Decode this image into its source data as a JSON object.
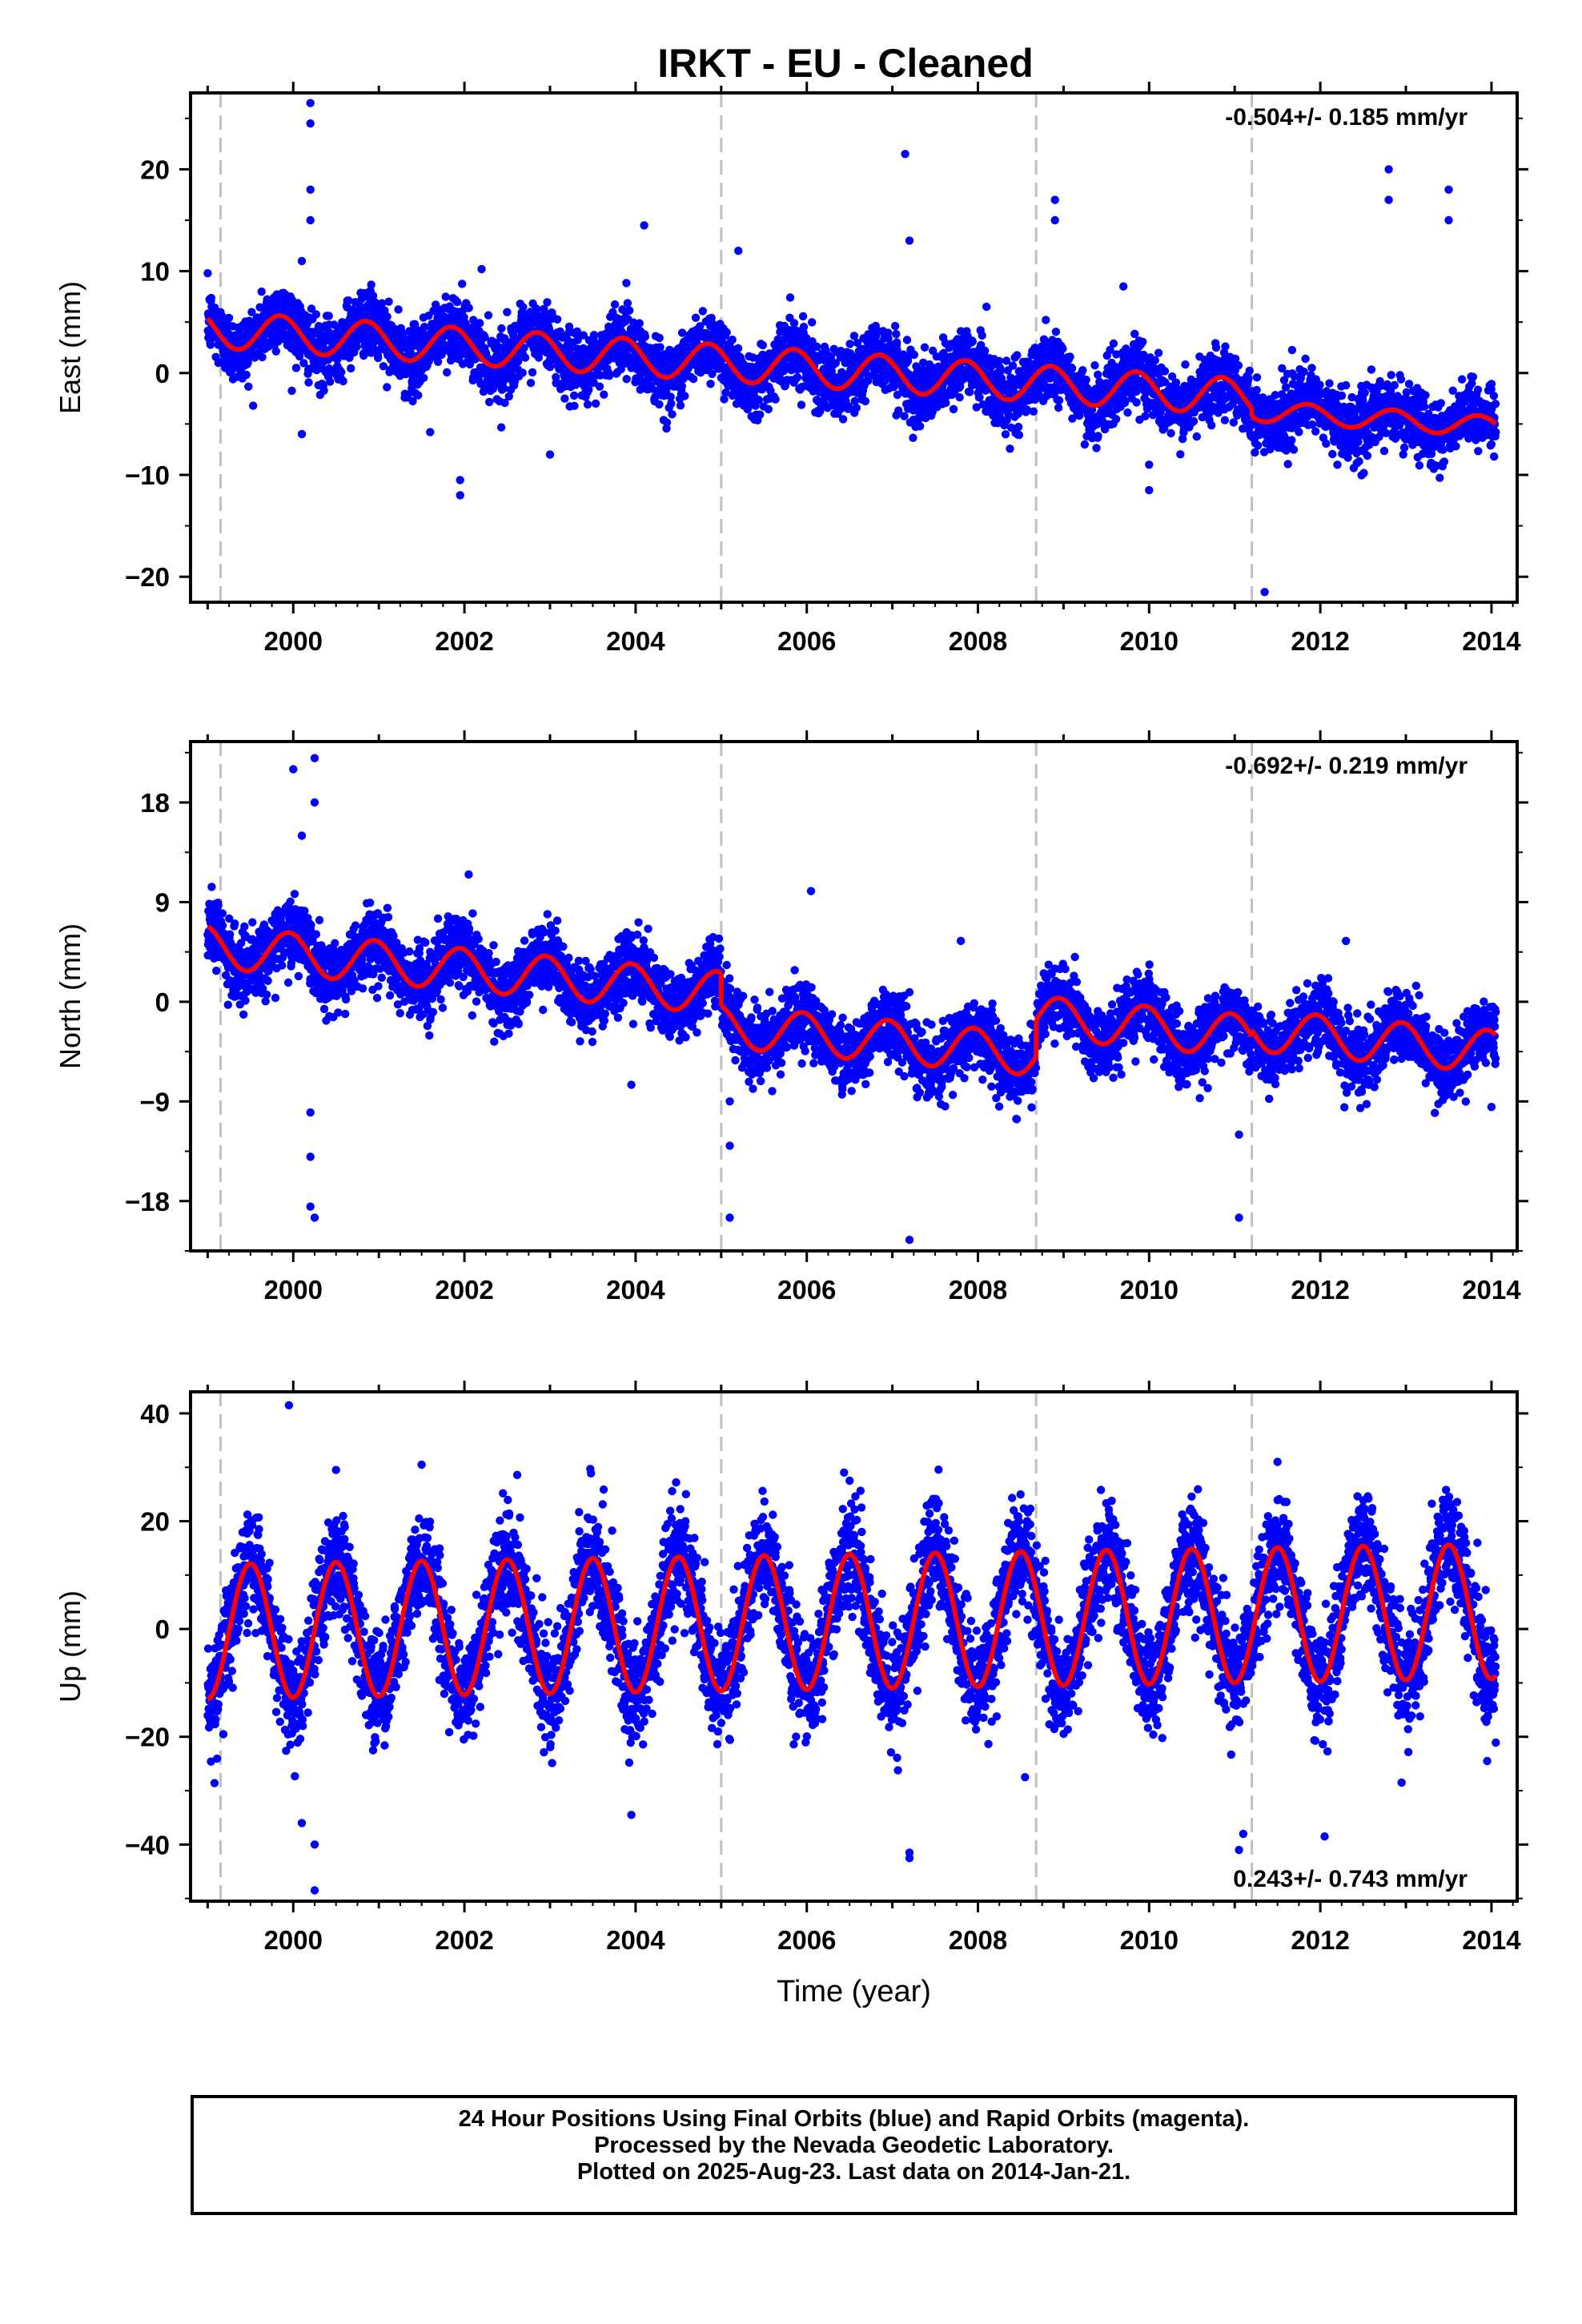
{
  "title": "IRKT  - EU - Cleaned",
  "footer": {
    "line1": "24 Hour Positions Using Final Orbits (blue) and Rapid Orbits (magenta).",
    "line2": "Processed by the Nevada Geodetic Laboratory.",
    "line3": "Plotted on 2025-Aug-23. Last data on 2014-Jan-21."
  },
  "colors": {
    "points": "#0000ff",
    "model": "#ff0000",
    "event_lines": "#c0c0c0",
    "axes": "#000000"
  },
  "chart_data": [
    {
      "type": "scatter",
      "name": "East",
      "ylabel": "East (mm)",
      "rate_text": "-0.504+/- 0.185 mm/yr",
      "rate_position": "top-right",
      "xlim": [
        1998.8,
        2014.3
      ],
      "ylim": [
        -22.5,
        27.5
      ],
      "yticks": [
        -20,
        -10,
        0,
        10,
        20
      ],
      "xticks": [
        2000,
        2002,
        2004,
        2006,
        2008,
        2010,
        2012,
        2014
      ],
      "event_lines_year": [
        1999.15,
        2005.0,
        2008.68,
        2011.2
      ],
      "model": {
        "segments": [
          {
            "from": 1999.0,
            "to": 2011.2,
            "offset": 4.3,
            "trend": -0.55,
            "annual_amp": 1.8,
            "annual_phase_year": 0.85
          },
          {
            "from": 2011.2,
            "to": 2014.05,
            "offset": 3.0,
            "trend": -0.55,
            "annual_amp": 1.0,
            "annual_phase_year": 0.85
          }
        ]
      },
      "scatter_sd": 1.6,
      "outliers": [
        [
          2000.2,
          26.5
        ],
        [
          2000.2,
          24.5
        ],
        [
          2000.2,
          18.0
        ],
        [
          2000.2,
          15.0
        ],
        [
          2000.1,
          11.0
        ],
        [
          2007.15,
          21.5
        ],
        [
          2007.2,
          13.0
        ],
        [
          2008.9,
          17.0
        ],
        [
          2008.9,
          15.0
        ],
        [
          2012.8,
          20.0
        ],
        [
          2012.8,
          17.0
        ],
        [
          2013.5,
          18.0
        ],
        [
          2013.5,
          15.0
        ],
        [
          2011.35,
          -21.5
        ],
        [
          2004.1,
          14.5
        ],
        [
          2005.2,
          12.0
        ],
        [
          2001.95,
          -12.0
        ],
        [
          2001.95,
          -10.5
        ],
        [
          2003.0,
          -8.0
        ],
        [
          2014.0,
          -7.0
        ],
        [
          2014.0,
          -5.0
        ],
        [
          2000.1,
          -6.0
        ],
        [
          2002.2,
          10.2
        ],
        [
          2010.0,
          -11.5
        ],
        [
          2010.0,
          -9.0
        ],
        [
          2012.2,
          -9.0
        ],
        [
          2009.7,
          8.5
        ],
        [
          2008.1,
          6.5
        ],
        [
          2001.6,
          -5.8
        ]
      ]
    },
    {
      "type": "scatter",
      "name": "North",
      "ylabel": "North (mm)",
      "rate_text": "-0.692+/- 0.219 mm/yr",
      "rate_position": "top-right",
      "xlim": [
        1998.8,
        2014.3
      ],
      "ylim": [
        -22.5,
        23.5
      ],
      "yticks": [
        -18,
        -9,
        0,
        9,
        18
      ],
      "xticks": [
        2000,
        2002,
        2004,
        2006,
        2008,
        2010,
        2012,
        2014
      ],
      "event_lines_year": [
        1999.15,
        2005.0,
        2008.68,
        2011.2
      ],
      "model": {
        "segments": [
          {
            "from": 1999.0,
            "to": 2005.0,
            "offset": 5.0,
            "trend": -0.7,
            "annual_amp": 1.9,
            "annual_phase_year": 0.95
          },
          {
            "from": 2005.0,
            "to": 2008.68,
            "offset": 2.0,
            "trend": -0.7,
            "annual_amp": 1.9,
            "annual_phase_year": 0.95
          },
          {
            "from": 2008.68,
            "to": 2011.2,
            "offset": 5.4,
            "trend": -0.7,
            "annual_amp": 1.9,
            "annual_phase_year": 0.95
          },
          {
            "from": 2011.2,
            "to": 2014.05,
            "offset": 6.0,
            "trend": -0.7,
            "annual_amp": 1.9,
            "annual_phase_year": 0.95
          }
        ]
      },
      "scatter_sd": 1.5,
      "outliers": [
        [
          2000.0,
          21.0
        ],
        [
          2000.25,
          22.0
        ],
        [
          2000.25,
          18.0
        ],
        [
          2000.1,
          15.0
        ],
        [
          2000.2,
          -10.0
        ],
        [
          2000.2,
          -14.0
        ],
        [
          2000.2,
          -18.5
        ],
        [
          2000.25,
          -19.5
        ],
        [
          2005.1,
          -19.5
        ],
        [
          2005.1,
          -13.0
        ],
        [
          2005.1,
          -9.0
        ],
        [
          2007.2,
          -21.5
        ],
        [
          2011.05,
          -19.5
        ],
        [
          2011.05,
          -12.0
        ],
        [
          2006.05,
          10.0
        ],
        [
          2003.95,
          -7.5
        ],
        [
          2012.3,
          5.5
        ],
        [
          2014.0,
          -9.5
        ],
        [
          2007.8,
          5.5
        ],
        [
          2002.05,
          11.5
        ],
        [
          2001.6,
          4.5
        ]
      ]
    },
    {
      "type": "scatter",
      "name": "Up",
      "ylabel": "Up (mm)",
      "xlabel": "Time (year)",
      "rate_text": "0.243+/- 0.743 mm/yr",
      "rate_position": "bottom-right",
      "xlim": [
        1998.8,
        2014.3
      ],
      "ylim": [
        -50.5,
        44
      ],
      "yticks": [
        -40,
        -20,
        0,
        20,
        40
      ],
      "xticks": [
        2000,
        2002,
        2004,
        2006,
        2008,
        2010,
        2012,
        2014
      ],
      "event_lines_year": [
        1999.15,
        2005.0,
        2008.68,
        2011.2
      ],
      "model": {
        "segments": [
          {
            "from": 1999.0,
            "to": 2014.05,
            "offset": -0.5,
            "trend": 0.25,
            "annual_amp": 12.5,
            "annual_phase_year": 0.5
          }
        ]
      },
      "scatter_sd": 5.0,
      "outliers": [
        [
          1999.95,
          41.5
        ],
        [
          2000.25,
          -48.5
        ],
        [
          2000.25,
          -40.0
        ],
        [
          2000.1,
          -36.0
        ],
        [
          2007.2,
          -42.5
        ],
        [
          2007.2,
          -41.5
        ],
        [
          2011.05,
          -41.0
        ],
        [
          2011.1,
          -38.0
        ],
        [
          2003.95,
          -34.5
        ],
        [
          2012.05,
          -38.5
        ],
        [
          2001.5,
          30.5
        ],
        [
          2000.5,
          29.5
        ],
        [
          2006.5,
          27.5
        ],
        [
          2011.5,
          31.0
        ],
        [
          2013.95,
          -24.5
        ],
        [
          2008.55,
          -27.5
        ],
        [
          2012.95,
          -28.5
        ]
      ]
    }
  ]
}
